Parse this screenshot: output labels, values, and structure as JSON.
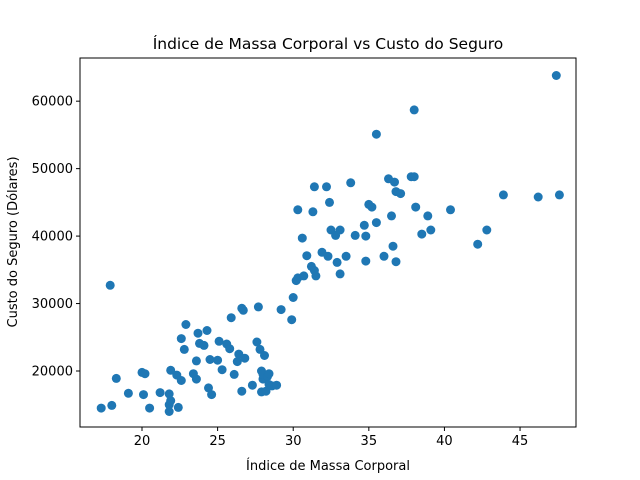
{
  "chart_data": {
    "type": "scatter",
    "title": "Índice de Massa Corporal vs Custo do Seguro",
    "xlabel": "Índice de Massa Corporal",
    "ylabel": "Custo do Seguro (Dólares)",
    "xlim": [
      15.9,
      48.7
    ],
    "ylim": [
      11700,
      66400
    ],
    "xticks": [
      20,
      25,
      30,
      35,
      40,
      45
    ],
    "yticks": [
      20000,
      30000,
      40000,
      50000,
      60000
    ],
    "ytick_labels": [
      "20000",
      "30000",
      "40000",
      "50000",
      "60000"
    ],
    "grid": false,
    "color": "#1f77b4",
    "points": [
      [
        17.3,
        14500
      ],
      [
        17.9,
        32700
      ],
      [
        18.0,
        14900
      ],
      [
        18.3,
        18900
      ],
      [
        19.1,
        16700
      ],
      [
        20.0,
        19800
      ],
      [
        20.1,
        16500
      ],
      [
        20.2,
        19600
      ],
      [
        20.5,
        14500
      ],
      [
        21.2,
        16800
      ],
      [
        21.8,
        14000
      ],
      [
        21.8,
        15000
      ],
      [
        21.8,
        16600
      ],
      [
        21.9,
        15600
      ],
      [
        21.9,
        20100
      ],
      [
        22.3,
        19400
      ],
      [
        22.4,
        14600
      ],
      [
        22.6,
        18600
      ],
      [
        22.6,
        24800
      ],
      [
        22.8,
        23200
      ],
      [
        22.9,
        26900
      ],
      [
        23.4,
        19600
      ],
      [
        23.6,
        18800
      ],
      [
        23.6,
        21500
      ],
      [
        23.7,
        25600
      ],
      [
        23.8,
        24100
      ],
      [
        24.1,
        23800
      ],
      [
        24.3,
        26000
      ],
      [
        24.4,
        17500
      ],
      [
        24.5,
        21700
      ],
      [
        24.6,
        16500
      ],
      [
        25.0,
        21600
      ],
      [
        25.1,
        24400
      ],
      [
        25.3,
        20200
      ],
      [
        25.6,
        24000
      ],
      [
        25.8,
        23300
      ],
      [
        25.9,
        27900
      ],
      [
        26.1,
        19500
      ],
      [
        26.3,
        21400
      ],
      [
        26.4,
        22500
      ],
      [
        26.6,
        29300
      ],
      [
        26.6,
        17000
      ],
      [
        26.7,
        29000
      ],
      [
        26.8,
        21900
      ],
      [
        27.3,
        17900
      ],
      [
        27.6,
        24300
      ],
      [
        27.7,
        29500
      ],
      [
        27.8,
        23200
      ],
      [
        27.9,
        16900
      ],
      [
        27.9,
        20000
      ],
      [
        28.0,
        18800
      ],
      [
        28.0,
        19500
      ],
      [
        28.1,
        22300
      ],
      [
        28.2,
        17000
      ],
      [
        28.3,
        19200
      ],
      [
        28.4,
        18000
      ],
      [
        28.4,
        19600
      ],
      [
        28.6,
        17800
      ],
      [
        28.9,
        17900
      ],
      [
        29.2,
        29100
      ],
      [
        29.9,
        27600
      ],
      [
        30.0,
        30900
      ],
      [
        30.2,
        33400
      ],
      [
        30.3,
        33800
      ],
      [
        30.3,
        43900
      ],
      [
        30.6,
        39700
      ],
      [
        30.7,
        34100
      ],
      [
        30.9,
        37100
      ],
      [
        31.2,
        35500
      ],
      [
        31.3,
        43600
      ],
      [
        31.4,
        47300
      ],
      [
        31.4,
        34900
      ],
      [
        31.5,
        34100
      ],
      [
        31.9,
        37600
      ],
      [
        32.2,
        47300
      ],
      [
        32.3,
        37000
      ],
      [
        32.4,
        45000
      ],
      [
        32.5,
        40900
      ],
      [
        32.8,
        40100
      ],
      [
        32.9,
        36100
      ],
      [
        33.1,
        34400
      ],
      [
        33.1,
        40900
      ],
      [
        33.5,
        37000
      ],
      [
        33.8,
        47900
      ],
      [
        34.1,
        40100
      ],
      [
        34.7,
        41600
      ],
      [
        34.8,
        36300
      ],
      [
        34.8,
        40000
      ],
      [
        35.0,
        44700
      ],
      [
        35.2,
        44300
      ],
      [
        35.5,
        55100
      ],
      [
        35.5,
        42000
      ],
      [
        36.0,
        37000
      ],
      [
        36.3,
        48500
      ],
      [
        36.5,
        43000
      ],
      [
        36.6,
        38500
      ],
      [
        36.7,
        48000
      ],
      [
        36.8,
        36200
      ],
      [
        36.8,
        46600
      ],
      [
        37.1,
        46300
      ],
      [
        37.8,
        48800
      ],
      [
        38.0,
        48800
      ],
      [
        38.0,
        58700
      ],
      [
        38.1,
        44300
      ],
      [
        38.5,
        40300
      ],
      [
        38.9,
        43000
      ],
      [
        39.1,
        40900
      ],
      [
        40.4,
        43900
      ],
      [
        42.2,
        38800
      ],
      [
        42.8,
        40900
      ],
      [
        43.9,
        46100
      ],
      [
        46.2,
        45800
      ],
      [
        47.4,
        63800
      ],
      [
        47.6,
        46100
      ]
    ]
  }
}
